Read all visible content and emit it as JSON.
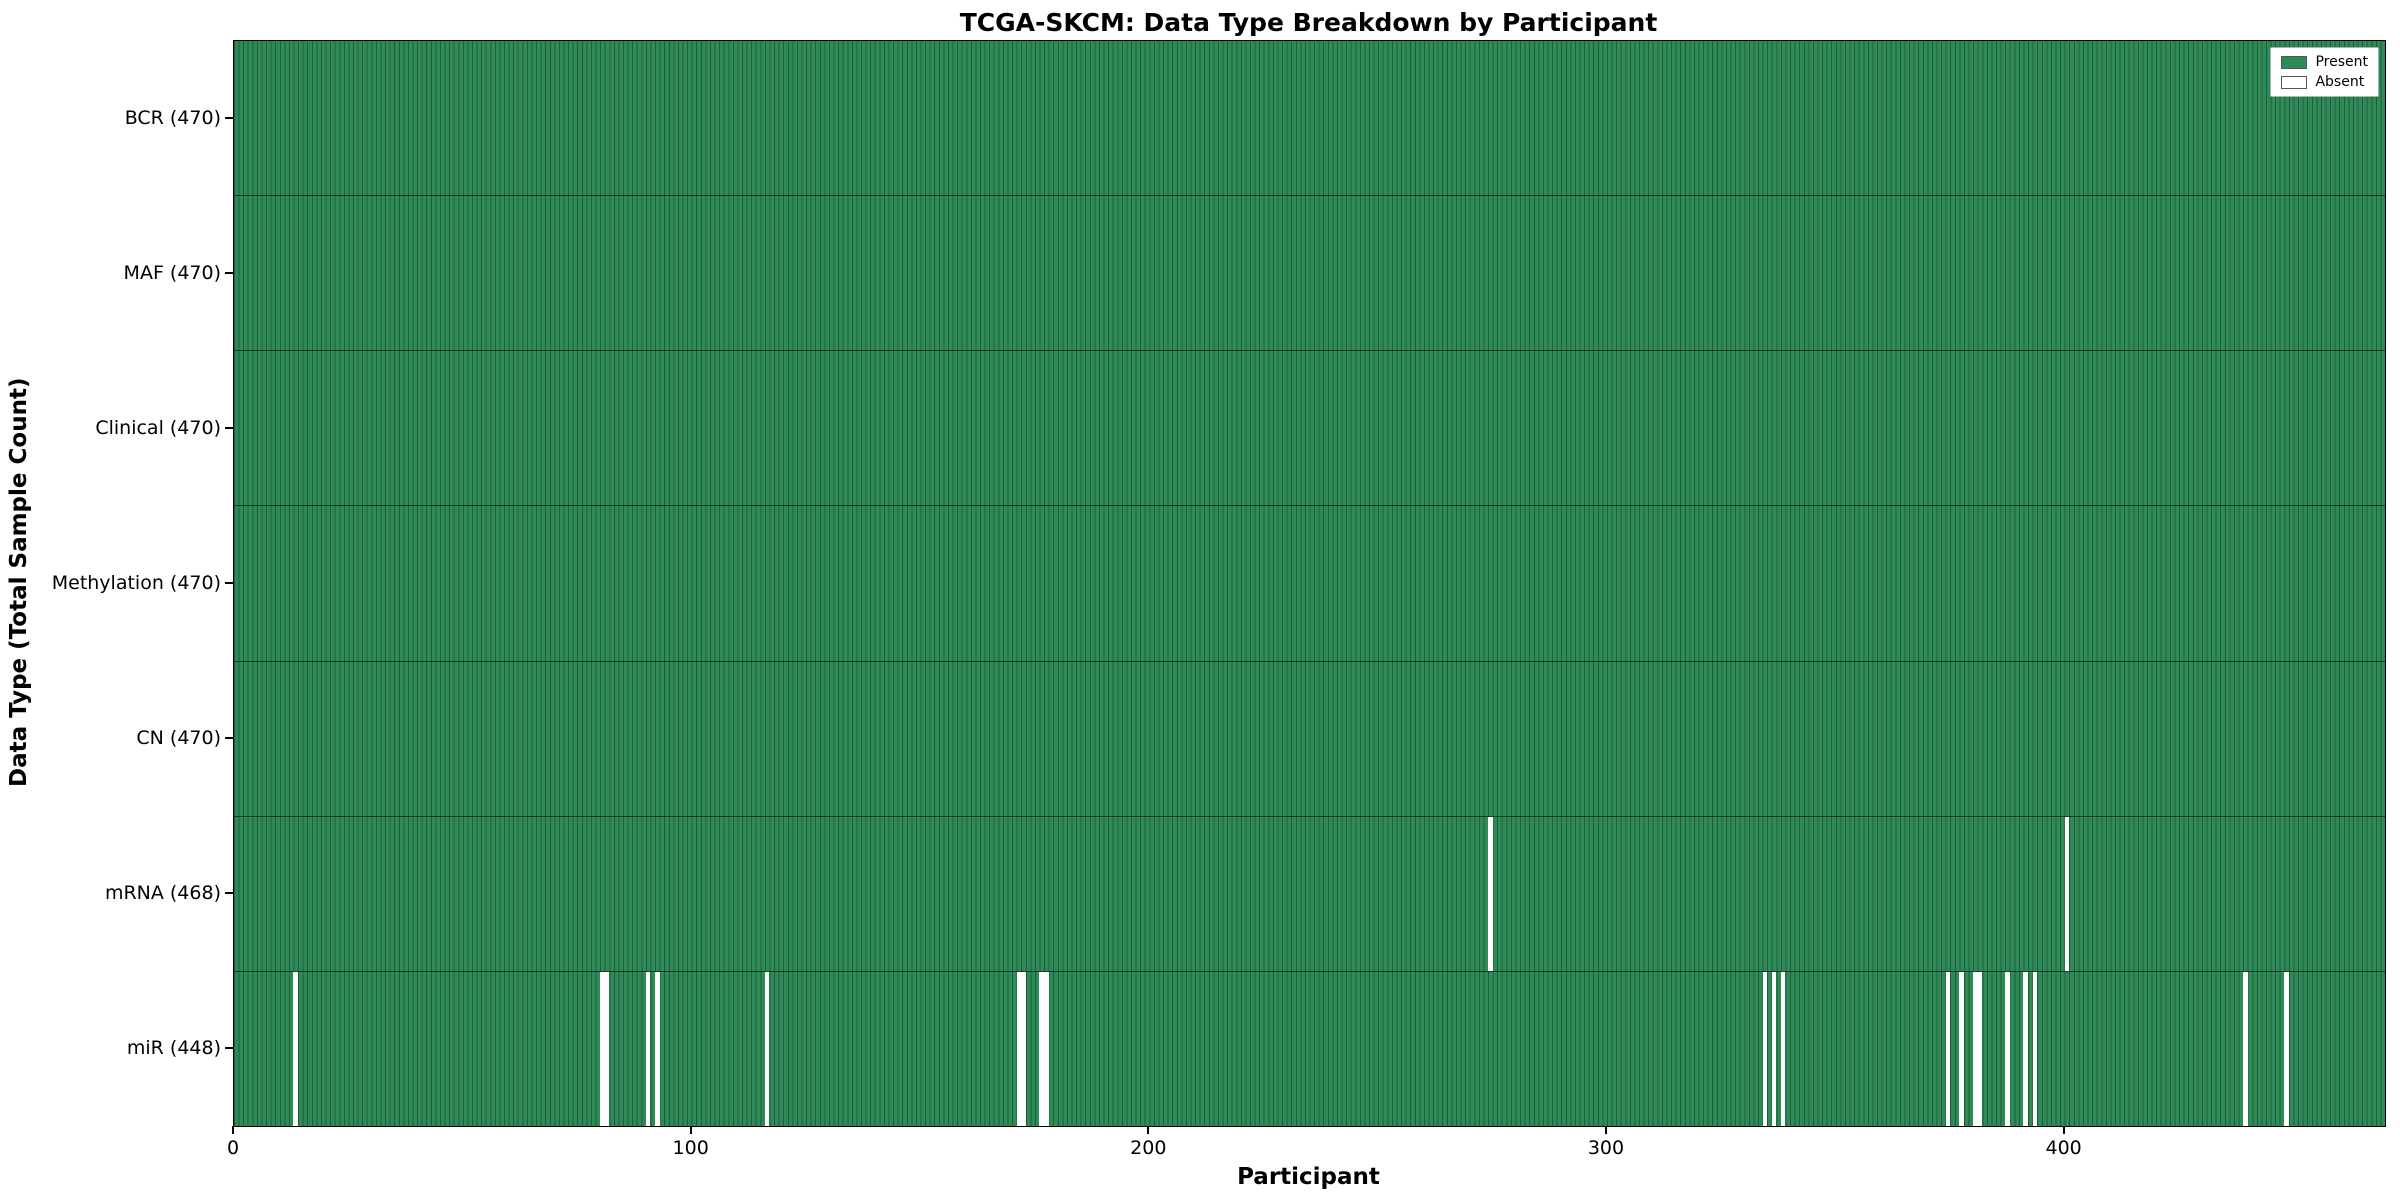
{
  "title": "TCGA-SKCM: Data Type Breakdown by Participant",
  "chart_data": {
    "type": "heatmap",
    "title": "TCGA-SKCM: Data Type Breakdown by Participant",
    "xlabel": "Participant",
    "ylabel": "Data Type (Total Sample Count)",
    "x_ticks": [
      0,
      100,
      200,
      300,
      400
    ],
    "xlim": [
      0,
      470
    ],
    "n_participants": 470,
    "grid": false,
    "legend_position": "upper right",
    "legend": [
      {
        "label": "Present",
        "color": "#2e8b57"
      },
      {
        "label": "Absent",
        "color": "#ffffff"
      }
    ],
    "colors": {
      "present": "#2e8b57",
      "bar_edge": "#1d5c3a",
      "absent": "#ffffff",
      "row_separator": "#000000"
    },
    "rows": [
      {
        "label": "BCR (470)",
        "data_type": "BCR",
        "present_count": 470,
        "absent_participants": []
      },
      {
        "label": "MAF (470)",
        "data_type": "MAF",
        "present_count": 470,
        "absent_participants": []
      },
      {
        "label": "Clinical (470)",
        "data_type": "Clinical",
        "present_count": 470,
        "absent_participants": []
      },
      {
        "label": "Methylation (470)",
        "data_type": "Methylation",
        "present_count": 470,
        "absent_participants": []
      },
      {
        "label": "CN (470)",
        "data_type": "CN",
        "present_count": 470,
        "absent_participants": []
      },
      {
        "label": "mRNA (468)",
        "data_type": "mRNA",
        "present_count": 468,
        "absent_participants": [
          274,
          400
        ]
      },
      {
        "label": "miR (448)",
        "data_type": "miR",
        "present_count": 448,
        "absent_participants": [
          13,
          80,
          81,
          90,
          92,
          116,
          171,
          172,
          176,
          177,
          334,
          336,
          338,
          374,
          377,
          380,
          381,
          387,
          391,
          393,
          439,
          448
        ]
      }
    ]
  }
}
